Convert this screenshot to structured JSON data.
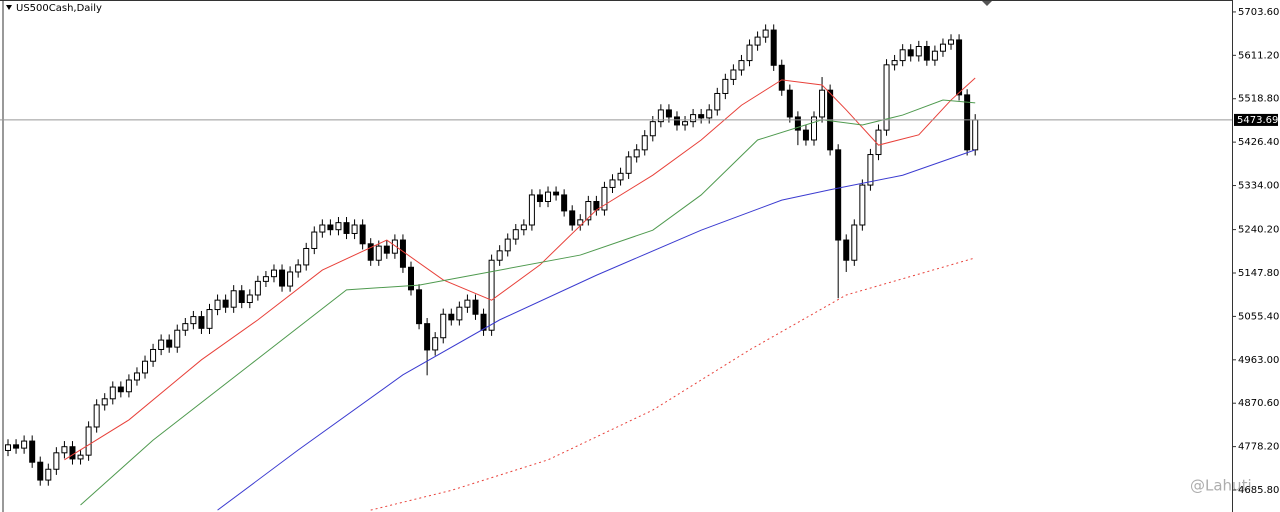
{
  "chart_data": {
    "type": "candlestick",
    "title": "US500Cash,Daily",
    "watermark": "@Lahuti",
    "ylim": [
      4639,
      5729
    ],
    "yticks": [
      {
        "value": 5703.6,
        "label": "5703.60"
      },
      {
        "value": 5611.2,
        "label": "5611.20"
      },
      {
        "value": 5518.8,
        "label": "5518.80"
      },
      {
        "value": 5426.4,
        "label": "5426.40"
      },
      {
        "value": 5334,
        "label": "5334.00"
      },
      {
        "value": 5240.2,
        "label": "5240.20"
      },
      {
        "value": 5147.8,
        "label": "5147.80"
      },
      {
        "value": 5055.4,
        "label": "5055.40"
      },
      {
        "value": 4963,
        "label": "4963.00"
      },
      {
        "value": 4870.6,
        "label": "4870.60"
      },
      {
        "value": 4778.2,
        "label": "4778.20"
      },
      {
        "value": 4685.8,
        "label": "4685.80"
      }
    ],
    "current_price": 5473.69,
    "up_color": "#ffffff",
    "down_color": "#000000",
    "open": [
      4770,
      4782,
      4775,
      4790,
      4745,
      4707,
      4730,
      4765,
      4778,
      4752,
      4760,
      4820,
      4867,
      4880,
      4905,
      4895,
      4920,
      4935,
      4960,
      4985,
      5005,
      4990,
      5026,
      5040,
      5055,
      5030,
      5070,
      5090,
      5075,
      5110,
      5085,
      5101,
      5130,
      5140,
      5154,
      5120,
      5150,
      5165,
      5200,
      5235,
      5250,
      5240,
      5255,
      5232,
      5250,
      5210,
      5175,
      5205,
      5190,
      5218,
      5160,
      5112,
      5040,
      4984,
      5010,
      5060,
      5048,
      5075,
      5090,
      5060,
      5026,
      5175,
      5195,
      5220,
      5240,
      5250,
      5314,
      5300,
      5320,
      5314,
      5280,
      5250,
      5261,
      5300,
      5282,
      5330,
      5346,
      5360,
      5395,
      5410,
      5440,
      5470,
      5495,
      5480,
      5463,
      5470,
      5485,
      5478,
      5495,
      5530,
      5560,
      5580,
      5600,
      5633,
      5650,
      5665,
      5590,
      5537,
      5480,
      5452,
      5431,
      5480,
      5537,
      5410,
      5218,
      5175,
      5250,
      5335,
      5400,
      5452,
      5591,
      5600,
      5623,
      5610,
      5630,
      5601,
      5620,
      5635,
      5644,
      5527,
      5410
    ],
    "high": [
      4794,
      4794,
      4802,
      4802,
      4757,
      4742,
      4777,
      4790,
      4790,
      4772,
      4832,
      4879,
      4892,
      4917,
      4917,
      4932,
      4947,
      4972,
      4997,
      5017,
      5017,
      5038,
      5052,
      5067,
      5067,
      5082,
      5102,
      5102,
      5122,
      5122,
      5113,
      5142,
      5152,
      5166,
      5166,
      5162,
      5177,
      5212,
      5247,
      5262,
      5262,
      5267,
      5267,
      5262,
      5262,
      5222,
      5217,
      5217,
      5230,
      5230,
      5172,
      5124,
      5052,
      5022,
      5072,
      5072,
      5087,
      5102,
      5102,
      5072,
      5187,
      5207,
      5232,
      5252,
      5262,
      5326,
      5326,
      5332,
      5332,
      5326,
      5292,
      5273,
      5312,
      5312,
      5342,
      5358,
      5372,
      5407,
      5422,
      5452,
      5482,
      5507,
      5507,
      5492,
      5482,
      5497,
      5497,
      5507,
      5542,
      5572,
      5592,
      5612,
      5645,
      5662,
      5677,
      5677,
      5602,
      5549,
      5492,
      5464,
      5492,
      5565,
      5549,
      5422,
      5230,
      5262,
      5347,
      5412,
      5464,
      5603,
      5612,
      5635,
      5635,
      5642,
      5642,
      5632,
      5647,
      5656,
      5656,
      5539,
      5486
    ],
    "low": [
      4758,
      4763,
      4763,
      4733,
      4695,
      4695,
      4718,
      4753,
      4740,
      4740,
      4748,
      4808,
      4855,
      4868,
      4883,
      4883,
      4908,
      4923,
      4948,
      4973,
      4978,
      4978,
      5014,
      5028,
      5018,
      5018,
      5058,
      5063,
      5063,
      5073,
      5073,
      5089,
      5118,
      5128,
      5108,
      5108,
      5138,
      5153,
      5188,
      5223,
      5228,
      5228,
      5220,
      5220,
      5198,
      5163,
      5163,
      5178,
      5178,
      5148,
      5100,
      5028,
      4930,
      4972,
      4998,
      5036,
      5036,
      5063,
      5048,
      5014,
      5014,
      5163,
      5183,
      5208,
      5228,
      5238,
      5288,
      5288,
      5302,
      5268,
      5238,
      5238,
      5249,
      5270,
      5270,
      5318,
      5334,
      5348,
      5383,
      5398,
      5428,
      5458,
      5468,
      5451,
      5451,
      5458,
      5466,
      5466,
      5483,
      5518,
      5548,
      5568,
      5588,
      5621,
      5638,
      5578,
      5525,
      5468,
      5420,
      5419,
      5419,
      5468,
      5398,
      5094,
      5150,
      5163,
      5238,
      5323,
      5388,
      5440,
      5579,
      5588,
      5598,
      5598,
      5589,
      5589,
      5608,
      5623,
      5515,
      5398,
      5398
    ],
    "close": [
      4782,
      4775,
      4790,
      4745,
      4707,
      4730,
      4765,
      4778,
      4752,
      4760,
      4820,
      4867,
      4880,
      4905,
      4895,
      4920,
      4935,
      4960,
      4985,
      5005,
      4990,
      5026,
      5040,
      5055,
      5030,
      5070,
      5090,
      5075,
      5110,
      5085,
      5101,
      5130,
      5140,
      5154,
      5120,
      5150,
      5165,
      5200,
      5235,
      5250,
      5240,
      5255,
      5232,
      5250,
      5210,
      5175,
      5205,
      5190,
      5218,
      5160,
      5112,
      5040,
      4984,
      5010,
      5060,
      5048,
      5075,
      5090,
      5060,
      5026,
      5175,
      5195,
      5220,
      5240,
      5250,
      5314,
      5300,
      5320,
      5314,
      5280,
      5250,
      5261,
      5300,
      5282,
      5330,
      5346,
      5360,
      5395,
      5410,
      5440,
      5470,
      5495,
      5480,
      5463,
      5470,
      5485,
      5478,
      5495,
      5530,
      5560,
      5580,
      5600,
      5633,
      5650,
      5665,
      5590,
      5537,
      5480,
      5452,
      5431,
      5480,
      5537,
      5410,
      5218,
      5175,
      5250,
      5335,
      5400,
      5452,
      5591,
      5600,
      5623,
      5610,
      5630,
      5601,
      5620,
      5635,
      5644,
      5527,
      5410,
      5473.69
    ],
    "lines": [
      {
        "color": "#e8413a",
        "dash": false,
        "x": [
          7,
          15,
          24,
          31,
          39,
          47,
          54,
          60,
          66,
          73,
          80,
          86,
          91,
          96,
          101,
          104,
          108,
          113,
          117,
          120
        ],
        "values": [
          4750,
          4835,
          4963,
          5048,
          5154,
          5218,
          5133,
          5090,
          5165,
          5282,
          5356,
          5431,
          5505,
          5559,
          5548,
          5495,
          5420,
          5442,
          5516,
          5563
        ]
      },
      {
        "color": "#4f9a4f",
        "dash": false,
        "x": [
          9,
          18,
          30,
          42,
          51,
          61,
          71,
          80,
          86,
          93,
          101,
          106,
          111,
          116,
          120
        ],
        "values": [
          4654,
          4792,
          4952,
          5112,
          5122,
          5154,
          5186,
          5239,
          5314,
          5431,
          5474,
          5463,
          5484,
          5516,
          5510
        ]
      },
      {
        "color": "#3b3bd0",
        "dash": false,
        "x": [
          26,
          36,
          49,
          61,
          73,
          86,
          96,
          102,
          111,
          120
        ],
        "values": [
          4643,
          4771,
          4931,
          5048,
          5143,
          5239,
          5303,
          5325,
          5356,
          5410
        ]
      },
      {
        "color": "#e8413a",
        "dash": true,
        "x": [
          45,
          55,
          67,
          80,
          92,
          104,
          120
        ],
        "values": [
          4643,
          4685,
          4750,
          4856,
          4984,
          5101,
          5180
        ]
      }
    ]
  }
}
